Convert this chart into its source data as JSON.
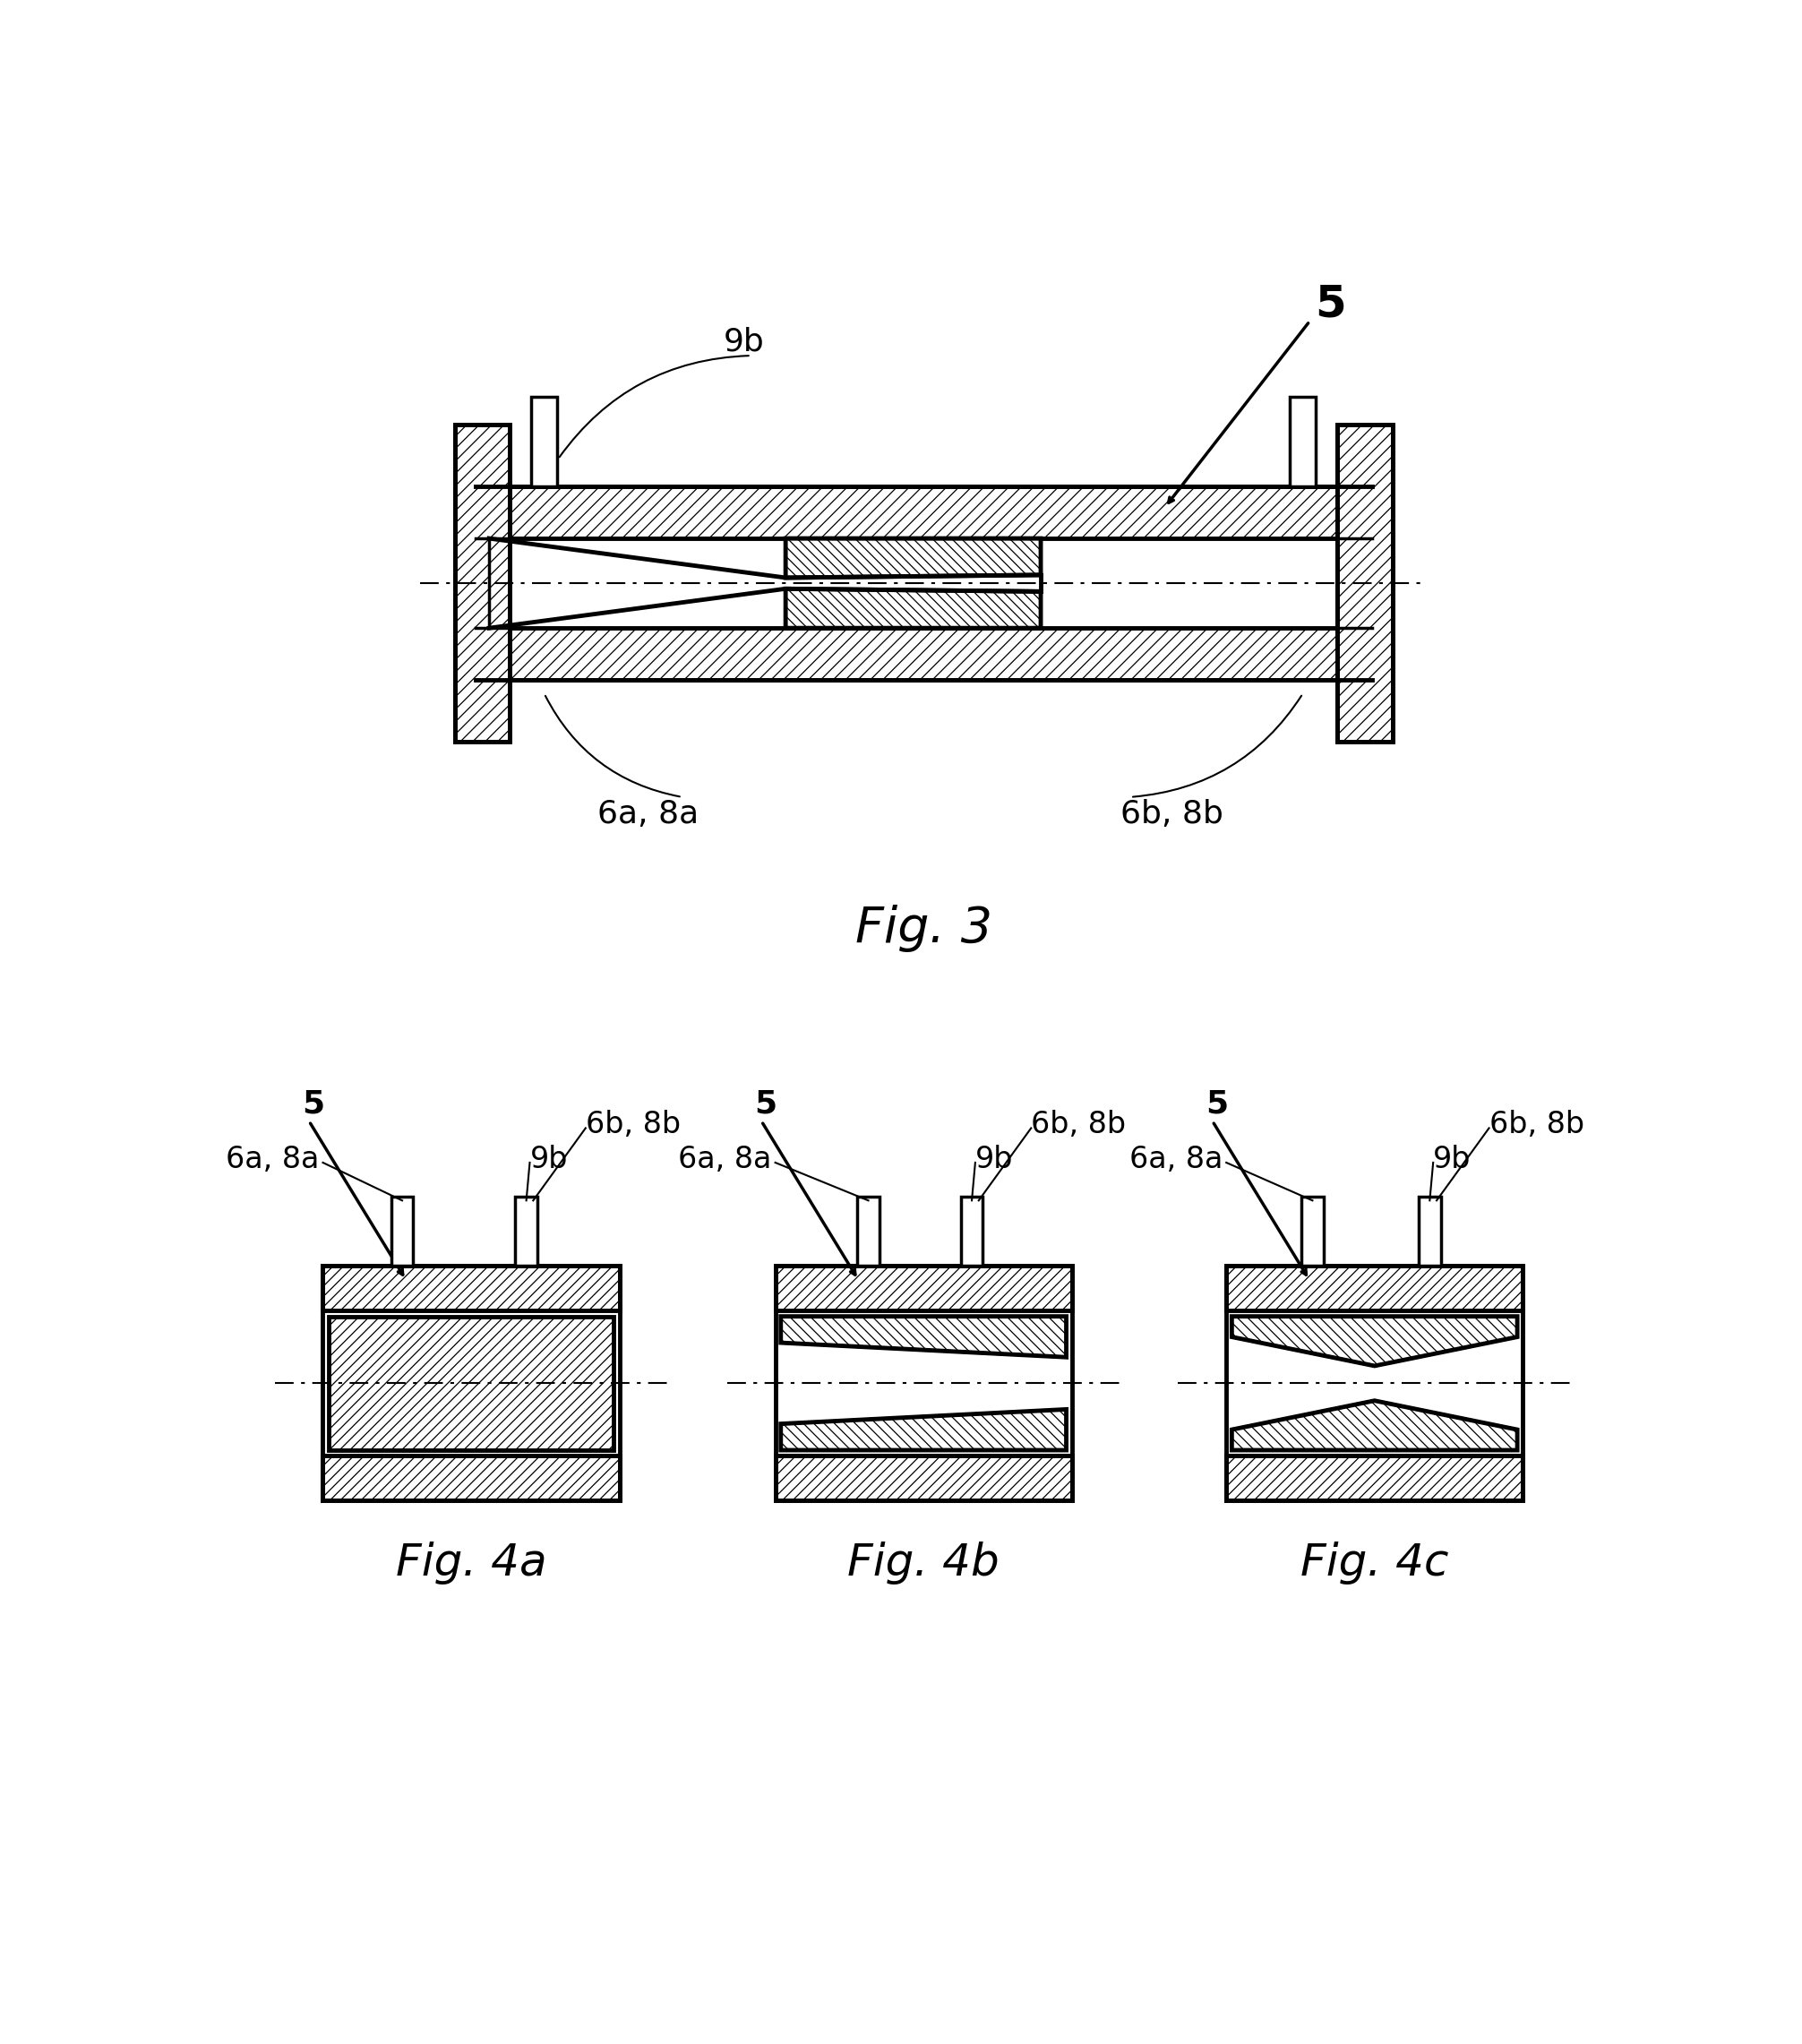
{
  "bg_color": "#ffffff",
  "fig3_label": "Fig. 3",
  "fig4a_label": "Fig. 4a",
  "fig4b_label": "Fig. 4b",
  "fig4c_label": "Fig. 4c",
  "label_5": "5",
  "label_9b": "9b",
  "label_6a8a": "6a, 8a",
  "label_6b8b": "6b, 8b",
  "font_caption": 36,
  "font_label": 26,
  "font_sublabel": 24
}
